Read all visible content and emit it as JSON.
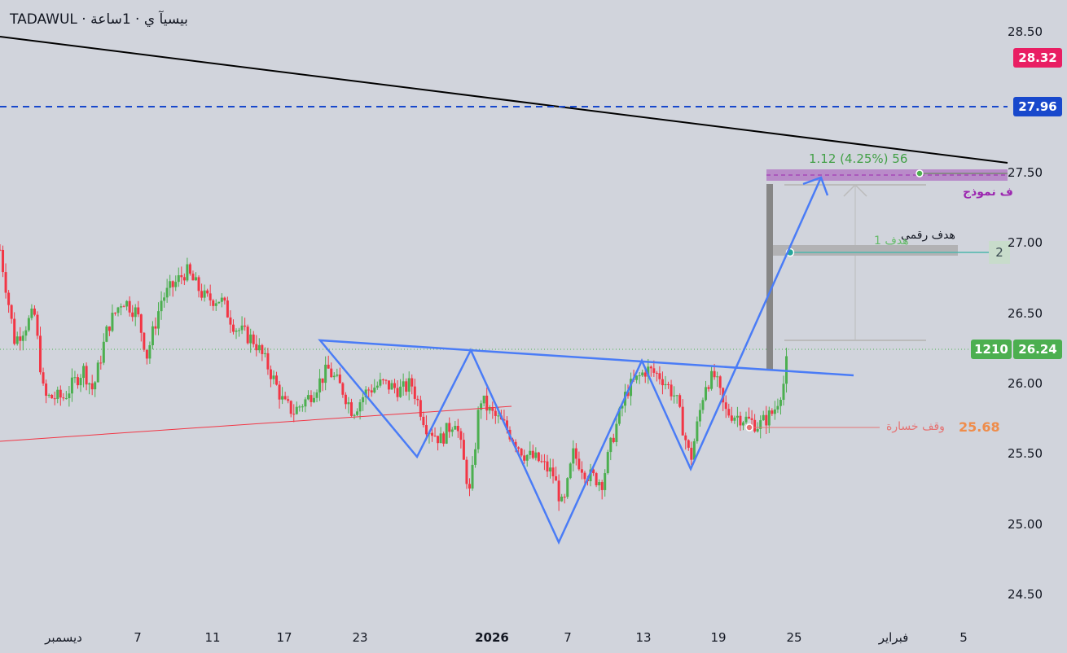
{
  "header": {
    "title": "TADAWUL · ﺑﻴﺴﻴﺂ ﻱ · 1ﺳﺎﻋﺔ"
  },
  "chart_data": {
    "type": "candlestick",
    "title": "TADAWUL · 1 hour",
    "ylim": [
      24.4,
      28.6
    ],
    "y_ticks": [
      "28.50",
      "27.50",
      "27.00",
      "26.50",
      "26.00",
      "25.50",
      "25.00",
      "24.50"
    ],
    "x_ticks": [
      "ديسمبر",
      "7",
      "11",
      "17",
      "23",
      "2026",
      "7",
      "13",
      "19",
      "25",
      "فبراير",
      "5"
    ],
    "price_path": [
      [
        0,
        26.95
      ],
      [
        3,
        26.3
      ],
      [
        7,
        26.5
      ],
      [
        9,
        25.9
      ],
      [
        13,
        25.9
      ],
      [
        17,
        26.1
      ],
      [
        19,
        25.95
      ],
      [
        22,
        26.4
      ],
      [
        25,
        26.6
      ],
      [
        28,
        26.5
      ],
      [
        30,
        26.2
      ],
      [
        33,
        26.6
      ],
      [
        38,
        26.8
      ],
      [
        42,
        26.6
      ],
      [
        45,
        26.6
      ],
      [
        48,
        26.4
      ],
      [
        52,
        26.3
      ],
      [
        55,
        26.1
      ],
      [
        58,
        25.85
      ],
      [
        60,
        25.8
      ],
      [
        63,
        25.9
      ],
      [
        67,
        26.1
      ],
      [
        70,
        25.95
      ],
      [
        72,
        25.8
      ],
      [
        75,
        25.95
      ],
      [
        78,
        26.0
      ],
      [
        82,
        25.95
      ],
      [
        84,
        26.0
      ],
      [
        87,
        25.7
      ],
      [
        90,
        25.6
      ],
      [
        93,
        25.75
      ],
      [
        96,
        25.2
      ],
      [
        98,
        25.9
      ],
      [
        100,
        25.8
      ],
      [
        103,
        25.7
      ],
      [
        107,
        25.5
      ],
      [
        110,
        25.45
      ],
      [
        113,
        25.35
      ],
      [
        115,
        25.1
      ],
      [
        117,
        25.5
      ],
      [
        120,
        25.35
      ],
      [
        123,
        25.3
      ],
      [
        125,
        25.6
      ],
      [
        128,
        25.95
      ],
      [
        132,
        26.1
      ],
      [
        135,
        26.05
      ],
      [
        138,
        25.9
      ],
      [
        141,
        25.45
      ],
      [
        144,
        26.0
      ],
      [
        146,
        26.05
      ],
      [
        148,
        25.8
      ],
      [
        152,
        25.75
      ],
      [
        155,
        25.7
      ],
      [
        158,
        25.8
      ],
      [
        160,
        26.0
      ],
      [
        161,
        26.24
      ]
    ],
    "last_price": "26.24",
    "last_volume": "1210",
    "levels": {
      "upper_badge": "28.32",
      "dashed_line": "27.96",
      "target_model": "27.50",
      "target_1": "27.00",
      "stop_loss": "25.68"
    },
    "colors": {
      "up": "#4caf50",
      "down": "#f23645",
      "pink": "#e91e63",
      "blue": "#1848cc"
    }
  },
  "annotations": {
    "measure": "1.12 (4.25%) 56",
    "pattern_target": "ف نموذج",
    "numeric_target": "هدف رقمي",
    "target_1": "هدف 1",
    "target_badge": "2",
    "stop_label": "وقف خسارة",
    "stop_value": "25.68"
  }
}
